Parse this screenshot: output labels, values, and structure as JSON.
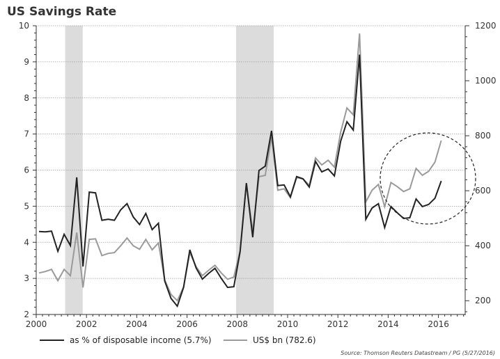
{
  "chart_data": {
    "type": "line",
    "title": "US Savings Rate",
    "xlabel": "",
    "ylabel_left": "",
    "ylabel_right": "",
    "x_start": 2000.0,
    "x_step": 0.25,
    "x_ticks": [
      2000,
      2002,
      2004,
      2006,
      2008,
      2010,
      2012,
      2014,
      2016
    ],
    "x_tick_labels": [
      "2000",
      "2002",
      "2004",
      "2006",
      "2008",
      "2010",
      "2012",
      "2014",
      "2016"
    ],
    "xlim": [
      2000,
      2017
    ],
    "y_left": {
      "lim": [
        2,
        10
      ],
      "ticks": [
        2,
        3,
        4,
        5,
        6,
        7,
        8,
        9,
        10
      ],
      "tick_labels": [
        "2",
        "3",
        "4",
        "5",
        "6",
        "7",
        "8",
        "9",
        "10"
      ]
    },
    "y_right": {
      "lim": [
        150,
        1200
      ],
      "ticks": [
        200,
        400,
        600,
        800,
        1000,
        1200
      ],
      "tick_labels": [
        "200",
        "400",
        "600",
        "800",
        "1000",
        "1200"
      ]
    },
    "grid": "horizontal-dotted",
    "recessions": [
      {
        "start": 2001.15,
        "end": 2001.85
      },
      {
        "start": 2007.95,
        "end": 2009.45
      }
    ],
    "series": [
      {
        "name": "as % of disposable income (5.7%)",
        "axis": "left",
        "color": "#222222",
        "values": [
          4.3,
          4.29,
          4.31,
          3.75,
          4.22,
          3.91,
          5.8,
          3.33,
          5.39,
          5.37,
          4.61,
          4.64,
          4.61,
          4.9,
          5.07,
          4.7,
          4.49,
          4.8,
          4.35,
          4.53,
          2.93,
          2.45,
          2.23,
          2.75,
          3.79,
          3.29,
          2.98,
          3.14,
          3.28,
          3.0,
          2.75,
          2.77,
          3.74,
          5.64,
          4.14,
          5.99,
          6.11,
          7.09,
          5.57,
          5.59,
          5.26,
          5.82,
          5.76,
          5.53,
          6.24,
          5.95,
          6.03,
          5.84,
          6.8,
          7.34,
          7.11,
          9.2,
          4.64,
          4.95,
          5.07,
          4.41,
          4.99,
          4.82,
          4.66,
          4.68,
          5.2,
          4.99,
          5.05,
          5.22,
          5.7
        ]
      },
      {
        "name": "US$ bn (782.6)",
        "axis": "right",
        "color": "#9a9a9a",
        "values": [
          301,
          306,
          314,
          273,
          314,
          291,
          448,
          248,
          423,
          425,
          364,
          372,
          375,
          400,
          428,
          400,
          387,
          423,
          385,
          410,
          276,
          223,
          200,
          250,
          375,
          324,
          291,
          311,
          329,
          301,
          278,
          286,
          382,
          628,
          451,
          651,
          656,
          795,
          602,
          607,
          575,
          648,
          643,
          620,
          719,
          694,
          711,
          686,
          813,
          901,
          876,
          1172,
          559,
          602,
          623,
          542,
          630,
          615,
          597,
          607,
          681,
          656,
          671,
          704,
          782.6
        ]
      }
    ],
    "legend": {
      "placement": "bottom-left",
      "entries": [
        "as % of disposable income (5.7%)",
        "US$ bn (782.6)"
      ]
    },
    "annotations": [
      {
        "type": "dashed-ellipse",
        "label": "",
        "x_range": [
          2013.8,
          2017.6
        ]
      }
    ],
    "source": "Source: Thomson Reuters Datastream / PG (5/27/2016)"
  }
}
